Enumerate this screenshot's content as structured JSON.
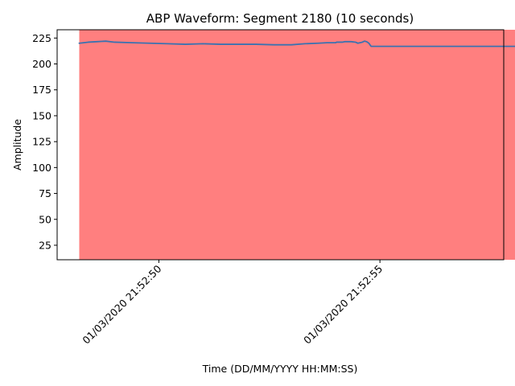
{
  "chart_data": {
    "type": "line",
    "title": "ABP Waveform: Segment 2180 (10 seconds)",
    "xlabel": "Time (DD/MM/YYYY HH:MM:SS)",
    "ylabel": "Amplitude",
    "x_range": [
      "01/03/2020 21:52:47.7",
      "01/03/2020 21:52:57.8"
    ],
    "ylim": [
      11,
      233
    ],
    "y_ticks": [
      25,
      50,
      75,
      100,
      125,
      150,
      175,
      200,
      225
    ],
    "x_ticks": [
      {
        "t": "01/03/2020 21:52:50",
        "label": "01/03/2020 21:52:50"
      },
      {
        "t": "01/03/2020 21:52:55",
        "label": "01/03/2020 21:52:55"
      }
    ],
    "grid": false,
    "legend": "none",
    "shaded_span": {
      "x": [
        "01/03/2020 21:52:48.2",
        "01/03/2020 21:52:58.2"
      ],
      "color": "#ff7f7f"
    },
    "series": [
      {
        "color": "#3a72b0",
        "x": [
          "01/03/2020 21:52:48.20",
          "01/03/2020 21:52:48.40",
          "01/03/2020 21:52:48.60",
          "01/03/2020 21:52:48.80",
          "01/03/2020 21:52:49.00",
          "01/03/2020 21:52:49.40",
          "01/03/2020 21:52:49.80",
          "01/03/2020 21:52:50.20",
          "01/03/2020 21:52:50.60",
          "01/03/2020 21:52:51.00",
          "01/03/2020 21:52:51.40",
          "01/03/2020 21:52:51.80",
          "01/03/2020 21:52:52.20",
          "01/03/2020 21:52:52.60",
          "01/03/2020 21:52:53.00",
          "01/03/2020 21:52:53.30",
          "01/03/2020 21:52:53.60",
          "01/03/2020 21:52:53.80",
          "01/03/2020 21:52:53.95",
          "01/03/2020 21:52:54.00",
          "01/03/2020 21:52:54.02",
          "01/03/2020 21:52:54.05",
          "01/03/2020 21:52:54.10",
          "01/03/2020 21:52:54.15",
          "01/03/2020 21:52:54.20",
          "01/03/2020 21:52:54.25",
          "01/03/2020 21:52:54.35",
          "01/03/2020 21:52:54.45",
          "01/03/2020 21:52:54.50",
          "01/03/2020 21:52:54.55",
          "01/03/2020 21:52:54.60",
          "01/03/2020 21:52:54.65",
          "01/03/2020 21:52:54.70",
          "01/03/2020 21:52:54.75",
          "01/03/2020 21:52:54.80",
          "01/03/2020 21:52:54.90",
          "01/03/2020 21:52:55.00",
          "01/03/2020 21:52:55.10",
          "01/03/2020 21:52:55.20",
          "01/03/2020 21:52:55.30",
          "01/03/2020 21:52:55.40",
          "01/03/2020 21:52:55.50",
          "01/03/2020 21:52:55.60",
          "01/03/2020 21:52:55.70",
          "01/03/2020 21:52:55.75",
          "01/03/2020 21:52:55.80",
          "01/03/2020 21:52:55.90",
          "01/03/2020 21:52:56.00",
          "01/03/2020 21:52:56.10",
          "01/03/2020 21:52:56.20",
          "01/03/2020 21:52:56.35",
          "01/03/2020 21:52:56.50",
          "01/03/2020 21:52:56.60",
          "01/03/2020 21:52:56.70",
          "01/03/2020 21:52:56.80",
          "01/03/2020 21:52:56.90",
          "01/03/2020 21:52:57.00",
          "01/03/2020 21:52:57.10",
          "01/03/2020 21:52:57.20",
          "01/03/2020 21:52:57.30",
          "01/03/2020 21:52:57.40",
          "01/03/2020 21:52:57.50",
          "01/03/2020 21:52:57.60",
          "01/03/2020 21:52:57.70",
          "01/03/2020 21:52:57.80",
          "01/03/2020 21:52:57.90",
          "01/03/2020 21:52:58.00",
          "01/03/2020 21:52:58.10",
          "01/03/2020 21:52:58.15",
          "01/03/2020 21:52:58.20"
        ],
        "y": [
          220,
          221,
          221.5,
          222,
          221,
          220.5,
          220,
          219.5,
          219,
          219.5,
          219,
          219,
          219,
          218.5,
          218.5,
          219.5,
          220,
          220.5,
          220.5,
          220.5,
          221,
          221,
          221,
          221,
          221.5,
          221.5,
          221.5,
          221,
          220,
          220.5,
          221,
          222,
          221.5,
          220,
          217,
          217,
          217,
          217,
          217,
          217,
          217,
          217,
          217,
          217,
          217,
          217,
          217,
          217,
          217,
          217,
          217,
          217,
          217,
          217,
          217,
          217,
          217,
          217,
          217,
          217,
          217,
          217,
          217,
          217,
          217,
          217,
          217,
          217,
          217,
          217
        ]
      }
    ]
  }
}
